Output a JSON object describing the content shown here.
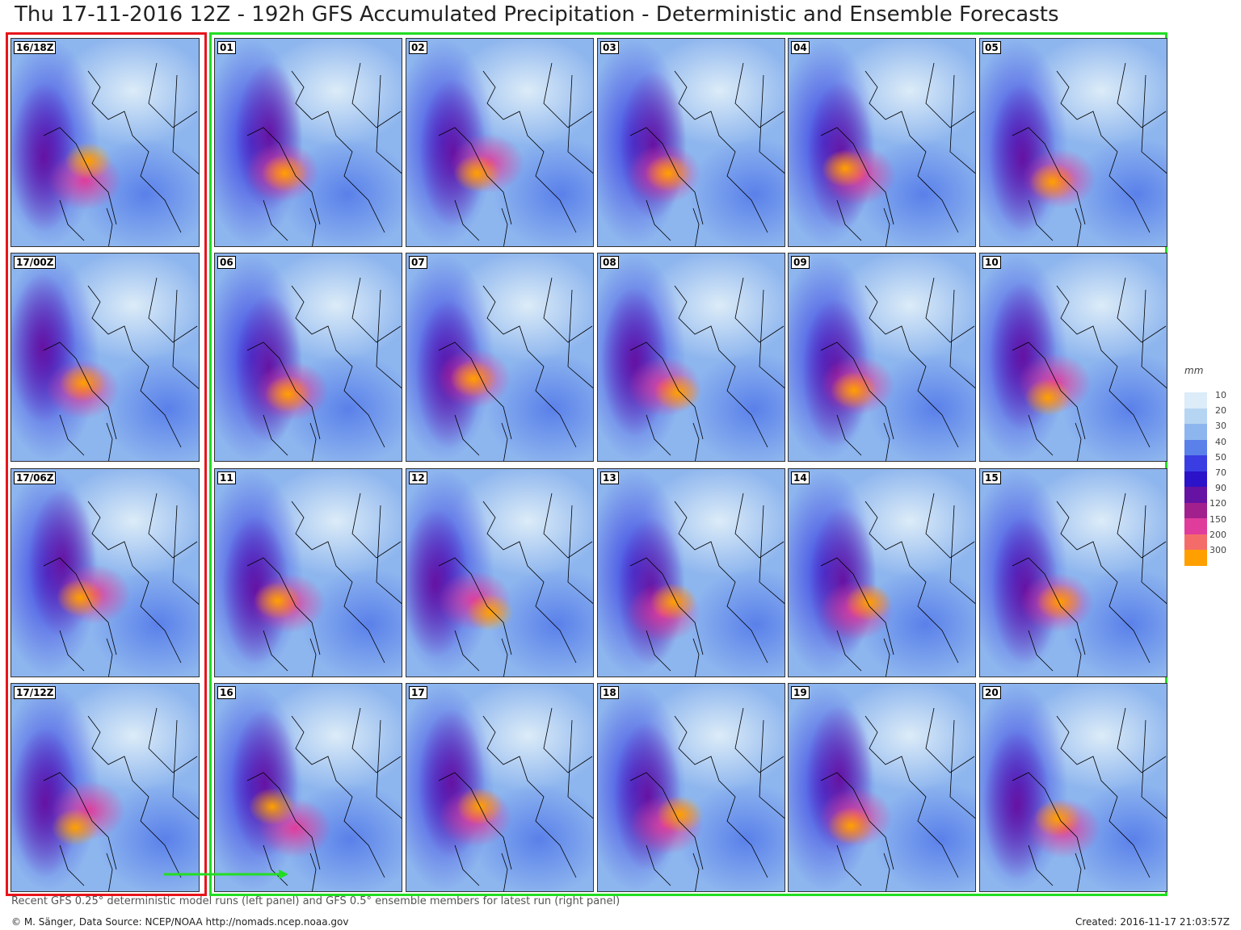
{
  "header": {
    "title": "Thu 17-11-2016 12Z - 192h GFS Accumulated Precipitation - Deterministic and Ensemble Forecasts"
  },
  "deterministic_panels": [
    "16/18Z",
    "17/00Z",
    "17/06Z",
    "17/12Z"
  ],
  "ensemble_panels": [
    "01",
    "02",
    "03",
    "04",
    "05",
    "06",
    "07",
    "08",
    "09",
    "10",
    "11",
    "12",
    "13",
    "14",
    "15",
    "16",
    "17",
    "18",
    "19",
    "20"
  ],
  "legend": {
    "unit": "mm",
    "levels": [
      {
        "value": 10,
        "color": "#dcecf8"
      },
      {
        "value": 20,
        "color": "#b6d5f2"
      },
      {
        "value": 30,
        "color": "#8db5ee"
      },
      {
        "value": 40,
        "color": "#5a80ea"
      },
      {
        "value": 50,
        "color": "#3a3ee2"
      },
      {
        "value": 70,
        "color": "#2c12c8"
      },
      {
        "value": 90,
        "color": "#6612a2"
      },
      {
        "value": 120,
        "color": "#a1208e"
      },
      {
        "value": 150,
        "color": "#e03c9c"
      },
      {
        "value": 200,
        "color": "#f46c6a"
      },
      {
        "value": 300,
        "color": "#ffa000"
      }
    ]
  },
  "caption": "Recent GFS 0.25° deterministic model runs (left panel) and GFS 0.5° ensemble members for latest run (right panel)",
  "footer": {
    "source": "© M. Sänger, Data Source: NCEP/NOAA http://nomads.ncep.noaa.gov",
    "created": "Created:  2016-11-17 21:03:57Z"
  }
}
